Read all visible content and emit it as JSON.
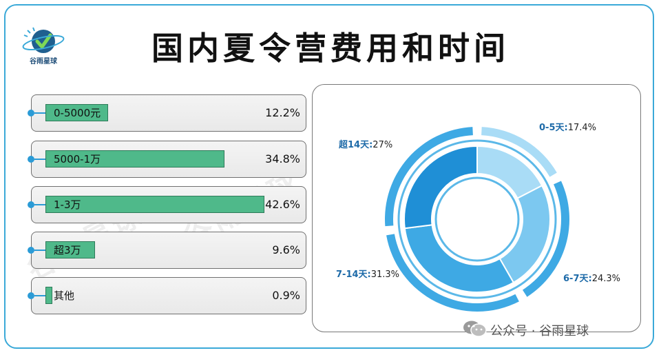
{
  "title": "国内夏令营费用和时间",
  "logo": {
    "text": "谷雨星球",
    "icon": "globe-check-icon"
  },
  "footer": {
    "icon": "wechat-icon",
    "text": "公众号 · 谷雨星球"
  },
  "watermark": "谷雨星球",
  "colors": {
    "frame": "#3aa9d8",
    "bar_fill": "#4fb98a",
    "donut": [
      "#a9dcf6",
      "#7cc8f0",
      "#3ea9e4",
      "#1f8fd6"
    ]
  },
  "chart_data": [
    {
      "type": "bar",
      "orientation": "horizontal",
      "categories": [
        "0-5000元",
        "5000-1万",
        "1-3万",
        "超3万",
        "其他"
      ],
      "values": [
        12.2,
        34.8,
        42.6,
        9.6,
        0.9
      ],
      "value_labels": [
        "12.2%",
        "34.8%",
        "42.6%",
        "9.6%",
        "0.9%"
      ],
      "xlim": [
        0,
        42.6
      ]
    },
    {
      "type": "pie",
      "style": "donut",
      "categories": [
        "0-5天",
        "6-7天",
        "7-14天",
        "超14天"
      ],
      "values": [
        17.4,
        24.3,
        31.3,
        27
      ],
      "value_labels": [
        "17.4%",
        "24.3%",
        "31.3%",
        "27%"
      ]
    }
  ]
}
